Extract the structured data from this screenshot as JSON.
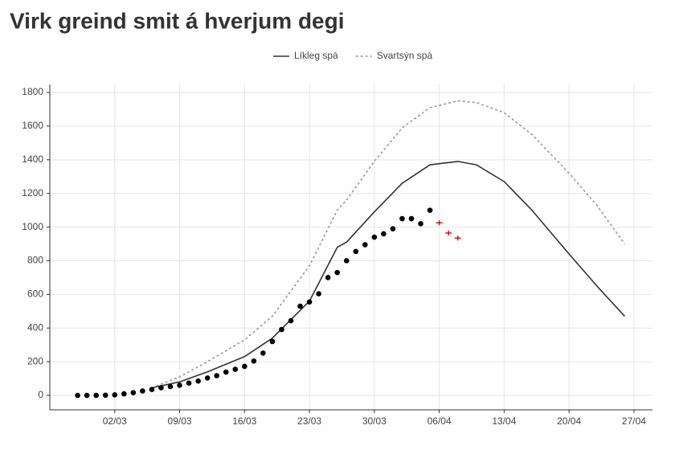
{
  "chart_data": {
    "type": "line",
    "title": "Virk greind smit á hverjum degi",
    "xlim": [
      "24/02",
      "29/04"
    ],
    "xticks": [
      "02/03",
      "09/03",
      "16/03",
      "23/03",
      "30/03",
      "06/04",
      "13/04",
      "20/04",
      "27/04"
    ],
    "ylim": [
      -86,
      1848
    ],
    "yticks": [
      0,
      200,
      400,
      600,
      800,
      1000,
      1200,
      1400,
      1600,
      1800
    ],
    "grid": true,
    "legend": "top",
    "series": [
      {
        "name": "Líkleg spá",
        "color": "#333333",
        "style": "solid",
        "x": [
          "06/03",
          "09/03",
          "12/03",
          "16/03",
          "19/03",
          "23/03",
          "26/03",
          "27/03",
          "30/03",
          "02/04",
          "05/04",
          "08/04",
          "10/04",
          "13/04",
          "16/04",
          "20/04",
          "23/04",
          "26/04"
        ],
        "values": [
          45,
          80,
          140,
          230,
          340,
          560,
          880,
          910,
          1090,
          1260,
          1370,
          1390,
          1370,
          1270,
          1100,
          840,
          650,
          470
        ]
      },
      {
        "name": "Svartsýn spá",
        "color": "#999999",
        "style": "dotted",
        "x": [
          "06/03",
          "09/03",
          "12/03",
          "16/03",
          "19/03",
          "23/03",
          "26/03",
          "27/03",
          "30/03",
          "02/04",
          "05/04",
          "08/04",
          "10/04",
          "13/04",
          "16/04",
          "20/04",
          "23/04",
          "26/04"
        ],
        "values": [
          45,
          110,
          200,
          330,
          470,
          770,
          1100,
          1160,
          1390,
          1590,
          1710,
          1750,
          1740,
          1680,
          1550,
          1320,
          1130,
          900
        ]
      },
      {
        "type": "scatter",
        "color": "#000000",
        "marker": "dot",
        "x": [
          "27/02",
          "28/02",
          "29/02",
          "01/03",
          "02/03",
          "03/03",
          "04/03",
          "05/03",
          "06/03",
          "07/03",
          "08/03",
          "09/03",
          "10/03",
          "11/03",
          "12/03",
          "13/03",
          "14/03",
          "15/03",
          "16/03",
          "17/03",
          "18/03",
          "19/03",
          "20/03",
          "21/03",
          "22/03",
          "23/03",
          "24/03",
          "25/03",
          "26/03",
          "27/03",
          "28/03",
          "29/03",
          "30/03",
          "31/03",
          "01/04",
          "02/04",
          "03/04",
          "04/04",
          "05/04"
        ],
        "values": [
          0,
          0,
          0,
          1,
          3,
          9,
          16,
          26,
          35,
          45,
          52,
          60,
          73,
          85,
          103,
          117,
          138,
          155,
          172,
          204,
          251,
          320,
          391,
          443,
          530,
          555,
          604,
          700,
          730,
          800,
          855,
          895,
          940,
          960,
          990,
          1050,
          1050,
          1020,
          1100
        ]
      },
      {
        "type": "scatter",
        "color": "#e00000",
        "marker": "cross",
        "x": [
          "06/04",
          "07/04",
          "08/04"
        ],
        "values": [
          1025,
          965,
          935
        ]
      }
    ]
  }
}
